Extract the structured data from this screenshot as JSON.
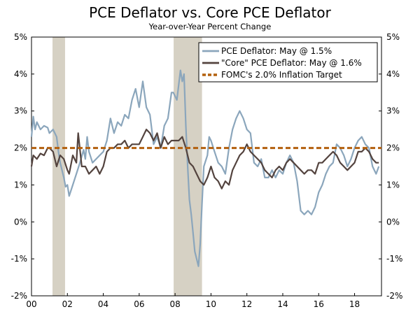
{
  "chart_data": {
    "type": "line",
    "title": "PCE Deflator vs. Core PCE Deflator",
    "subtitle": "Year-over-Year Percent Change",
    "ylim": [
      -2,
      5
    ],
    "xlim": [
      2000,
      2019.5
    ],
    "y_ticks": [
      -2,
      -1,
      0,
      1,
      2,
      3,
      4,
      5
    ],
    "y_tick_labels": [
      "-2%",
      "-1%",
      "0%",
      "1%",
      "2%",
      "3%",
      "4%",
      "5%"
    ],
    "x_ticks": [
      2000,
      2002,
      2004,
      2006,
      2008,
      2010,
      2012,
      2014,
      2016,
      2018
    ],
    "x_tick_labels": [
      "00",
      "02",
      "04",
      "06",
      "08",
      "10",
      "12",
      "14",
      "16",
      "18"
    ],
    "recessions": [
      {
        "start": 2001.17,
        "end": 2001.87
      },
      {
        "start": 2007.92,
        "end": 2009.5
      }
    ],
    "target_value": 2.0,
    "series": [
      {
        "name": "PCE Deflator: May @ 1.5%",
        "color": "#8ba6bc",
        "x": [
          2000.0,
          2000.1,
          2000.2,
          2000.3,
          2000.5,
          2000.7,
          2000.9,
          2001.0,
          2001.2,
          2001.4,
          2001.5,
          2001.6,
          2001.8,
          2001.9,
          2002.0,
          2002.1,
          2002.3,
          2002.5,
          2002.7,
          2002.9,
          2003.0,
          2003.1,
          2003.2,
          2003.4,
          2003.6,
          2003.8,
          2004.0,
          2004.2,
          2004.4,
          2004.6,
          2004.8,
          2005.0,
          2005.2,
          2005.4,
          2005.6,
          2005.8,
          2006.0,
          2006.2,
          2006.4,
          2006.6,
          2006.8,
          2007.0,
          2007.2,
          2007.4,
          2007.6,
          2007.8,
          2007.9,
          2008.1,
          2008.3,
          2008.4,
          2008.5,
          2008.6,
          2008.7,
          2008.8,
          2008.9,
          2009.0,
          2009.1,
          2009.2,
          2009.3,
          2009.4,
          2009.5,
          2009.6,
          2009.8,
          2009.9,
          2010.0,
          2010.2,
          2010.4,
          2010.6,
          2010.8,
          2011.0,
          2011.2,
          2011.4,
          2011.6,
          2011.8,
          2012.0,
          2012.2,
          2012.4,
          2012.6,
          2012.8,
          2013.0,
          2013.2,
          2013.4,
          2013.6,
          2013.8,
          2014.0,
          2014.2,
          2014.4,
          2014.6,
          2014.8,
          2015.0,
          2015.2,
          2015.4,
          2015.6,
          2015.8,
          2016.0,
          2016.2,
          2016.4,
          2016.6,
          2016.8,
          2017.0,
          2017.2,
          2017.4,
          2017.6,
          2017.8,
          2018.0,
          2018.2,
          2018.4,
          2018.6,
          2018.8,
          2019.0,
          2019.2,
          2019.35
        ],
        "values": [
          2.3,
          2.85,
          2.5,
          2.7,
          2.5,
          2.6,
          2.55,
          2.4,
          2.5,
          2.3,
          1.9,
          1.6,
          1.2,
          0.95,
          1.0,
          0.7,
          1.0,
          1.3,
          1.6,
          1.95,
          1.7,
          2.3,
          1.9,
          1.6,
          1.7,
          1.8,
          1.9,
          2.2,
          2.8,
          2.4,
          2.7,
          2.6,
          2.9,
          2.8,
          3.3,
          3.6,
          3.1,
          3.8,
          3.1,
          2.9,
          2.1,
          2.3,
          2.0,
          2.6,
          2.8,
          3.5,
          3.5,
          3.3,
          4.1,
          3.8,
          4.0,
          2.6,
          1.5,
          0.6,
          0.2,
          -0.3,
          -0.8,
          -1.0,
          -1.2,
          -0.6,
          0.5,
          1.5,
          1.8,
          2.3,
          2.2,
          1.9,
          1.6,
          1.5,
          1.3,
          2.0,
          2.5,
          2.8,
          3.0,
          2.8,
          2.5,
          2.4,
          1.6,
          1.5,
          1.7,
          1.2,
          1.2,
          1.4,
          1.2,
          1.4,
          1.3,
          1.6,
          1.8,
          1.6,
          1.1,
          0.3,
          0.2,
          0.3,
          0.2,
          0.4,
          0.8,
          1.0,
          1.3,
          1.5,
          1.6,
          2.1,
          2.0,
          1.8,
          1.5,
          1.7,
          2.0,
          2.2,
          2.3,
          2.1,
          2.0,
          1.5,
          1.3,
          1.5
        ]
      },
      {
        "name": "\"Core\" PCE Deflator: May @ 1.6%",
        "color": "#53433e",
        "x": [
          2000.0,
          2000.1,
          2000.3,
          2000.5,
          2000.7,
          2000.9,
          2001.0,
          2001.2,
          2001.4,
          2001.6,
          2001.8,
          2002.0,
          2002.1,
          2002.3,
          2002.5,
          2002.6,
          2002.8,
          2003.0,
          2003.2,
          2003.4,
          2003.6,
          2003.8,
          2004.0,
          2004.2,
          2004.4,
          2004.6,
          2004.8,
          2005.0,
          2005.2,
          2005.4,
          2005.6,
          2005.8,
          2006.0,
          2006.2,
          2006.4,
          2006.6,
          2006.8,
          2007.0,
          2007.2,
          2007.4,
          2007.6,
          2007.8,
          2008.0,
          2008.2,
          2008.4,
          2008.6,
          2008.8,
          2009.0,
          2009.2,
          2009.4,
          2009.6,
          2009.8,
          2010.0,
          2010.2,
          2010.4,
          2010.6,
          2010.8,
          2011.0,
          2011.2,
          2011.4,
          2011.6,
          2011.8,
          2012.0,
          2012.2,
          2012.4,
          2012.6,
          2012.8,
          2013.0,
          2013.2,
          2013.4,
          2013.6,
          2013.8,
          2014.0,
          2014.2,
          2014.4,
          2014.6,
          2014.8,
          2015.0,
          2015.2,
          2015.4,
          2015.6,
          2015.8,
          2016.0,
          2016.2,
          2016.4,
          2016.6,
          2016.8,
          2017.0,
          2017.2,
          2017.4,
          2017.6,
          2017.8,
          2018.0,
          2018.2,
          2018.4,
          2018.6,
          2018.8,
          2019.0,
          2019.2,
          2019.35
        ],
        "values": [
          1.5,
          1.8,
          1.7,
          1.85,
          1.8,
          2.0,
          2.0,
          1.9,
          1.5,
          1.8,
          1.7,
          1.4,
          1.3,
          1.8,
          1.6,
          2.4,
          1.5,
          1.5,
          1.3,
          1.4,
          1.5,
          1.3,
          1.5,
          1.9,
          2.0,
          2.0,
          2.1,
          2.1,
          2.2,
          2.0,
          2.1,
          2.1,
          2.1,
          2.3,
          2.5,
          2.4,
          2.2,
          2.4,
          2.0,
          2.3,
          2.1,
          2.2,
          2.2,
          2.2,
          2.3,
          2.0,
          1.6,
          1.5,
          1.3,
          1.1,
          1.0,
          1.2,
          1.5,
          1.2,
          1.1,
          0.9,
          1.1,
          1.0,
          1.4,
          1.6,
          1.8,
          1.9,
          2.1,
          1.9,
          1.8,
          1.7,
          1.6,
          1.4,
          1.3,
          1.2,
          1.4,
          1.5,
          1.4,
          1.6,
          1.7,
          1.6,
          1.5,
          1.4,
          1.3,
          1.4,
          1.4,
          1.3,
          1.6,
          1.6,
          1.7,
          1.8,
          1.9,
          1.8,
          1.6,
          1.5,
          1.4,
          1.5,
          1.6,
          1.9,
          1.9,
          2.0,
          1.9,
          1.7,
          1.6,
          1.6
        ]
      },
      {
        "name": "FOMC's 2.0% Inflation Target",
        "color": "#b3600e",
        "x": [
          2000.0,
          2019.5
        ],
        "values": [
          2.0,
          2.0
        ]
      }
    ],
    "legend": [
      "PCE Deflator: May @ 1.5%",
      "\"Core\" PCE Deflator: May @ 1.6%",
      "FOMC's 2.0% Inflation Target"
    ],
    "legend_position": "top-right",
    "grid": false
  }
}
